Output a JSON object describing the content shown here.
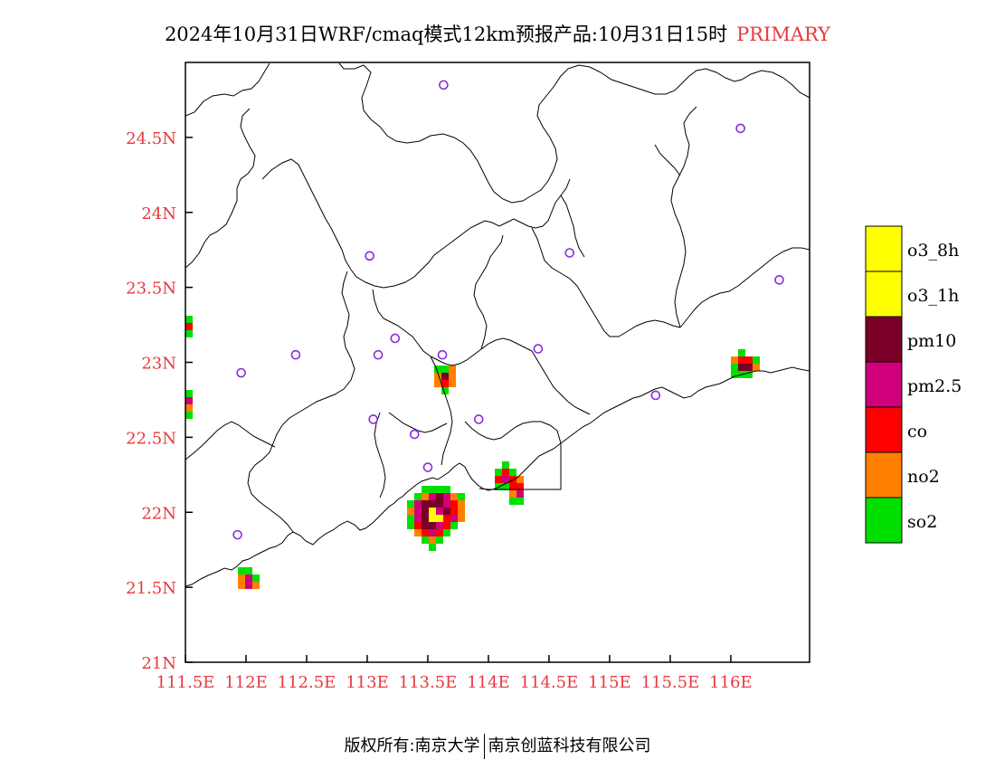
{
  "title": {
    "main": "2024年10月31日WRF/cmaq模式12km预报产品:10月31日15时",
    "tag": "PRIMARY"
  },
  "colors": {
    "o3_8h": "#ffff00",
    "o3_1h": "#ffff00",
    "pm10": "#7a0028",
    "pm25": "#d0007a",
    "co": "#ff0000",
    "no2": "#ff8000",
    "so2": "#00e000",
    "station": "#8a2be2",
    "axis_label": "#e8383d"
  },
  "map": {
    "lon_range": [
      111.5,
      116.65
    ],
    "lat_range": [
      21.0,
      25.0
    ],
    "x_ticks": [
      "111.5E",
      "112E",
      "112.5E",
      "113E",
      "113.5E",
      "114E",
      "114.5E",
      "115E",
      "115.5E",
      "116E"
    ],
    "x_tick_values": [
      111.5,
      112.0,
      112.5,
      113.0,
      113.5,
      114.0,
      114.5,
      115.0,
      115.5,
      116.0
    ],
    "y_ticks": [
      "21N",
      "21.5N",
      "22N",
      "22.5N",
      "23N",
      "23.5N",
      "24N",
      "24.5N"
    ],
    "y_tick_values": [
      21.0,
      21.5,
      22.0,
      22.5,
      23.0,
      23.5,
      24.0,
      24.5
    ]
  },
  "legend": [
    {
      "label": "o3_8h",
      "key": "o3_8h"
    },
    {
      "label": "o3_1h",
      "key": "o3_1h"
    },
    {
      "label": "pm10",
      "key": "pm10"
    },
    {
      "label": "pm2.5",
      "key": "pm25"
    },
    {
      "label": "co",
      "key": "co"
    },
    {
      "label": "no2",
      "key": "no2"
    },
    {
      "label": "so2",
      "key": "so2"
    }
  ],
  "stations": [
    [
      113.63,
      24.85
    ],
    [
      116.08,
      24.56
    ],
    [
      113.02,
      23.71
    ],
    [
      114.67,
      23.73
    ],
    [
      116.4,
      23.55
    ],
    [
      113.23,
      23.16
    ],
    [
      112.41,
      23.05
    ],
    [
      113.09,
      23.05
    ],
    [
      113.62,
      23.05
    ],
    [
      114.41,
      23.09
    ],
    [
      111.96,
      22.93
    ],
    [
      113.05,
      22.62
    ],
    [
      113.39,
      22.52
    ],
    [
      113.92,
      22.62
    ],
    [
      115.38,
      22.78
    ],
    [
      113.5,
      22.3
    ],
    [
      111.93,
      21.85
    ]
  ],
  "footer": {
    "left": "版权所有:南京大学",
    "right": "南京创蓝科技有限公司"
  }
}
